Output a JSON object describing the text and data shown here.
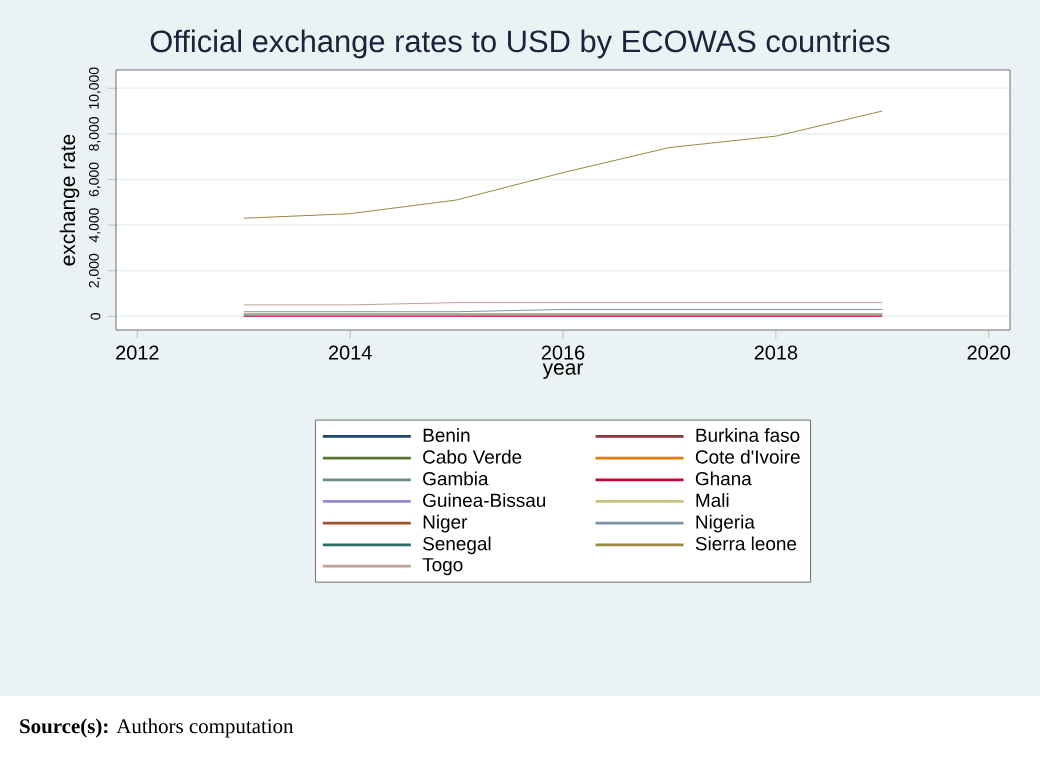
{
  "chart_data": {
    "type": "line",
    "title": "Official exchange rates to USD by ECOWAS countries",
    "xlabel": "year",
    "ylabel": "exchange rate",
    "annotations": [
      "**Source(s):** Authors computation"
    ],
    "x": [
      2013,
      2014,
      2015,
      2016,
      2017,
      2018,
      2019
    ],
    "xlim": [
      2011.8,
      2020.2
    ],
    "xticks": [
      2012,
      2014,
      2016,
      2018,
      2020
    ],
    "ylim": [
      -600,
      10800
    ],
    "yticks": [
      {
        "value": 0,
        "label": "0"
      },
      {
        "value": 2000,
        "label": "2,000"
      },
      {
        "value": 4000,
        "label": "4,000"
      },
      {
        "value": 6000,
        "label": "6,000"
      },
      {
        "value": 8000,
        "label": "8,000"
      },
      {
        "value": 10000,
        "label": "10,000"
      }
    ],
    "grid": "y",
    "legend": "bottom",
    "line_style": "solid",
    "series": [
      {
        "name": "Benin",
        "color": "#1a476f",
        "values": [
          null,
          null,
          null,
          null,
          null,
          null,
          null
        ]
      },
      {
        "name": "Burkina faso",
        "color": "#90353b",
        "values": [
          null,
          null,
          null,
          null,
          null,
          null,
          null
        ]
      },
      {
        "name": "Cabo Verde",
        "color": "#55752f",
        "values": [
          100,
          100,
          100,
          100,
          100,
          100,
          100
        ]
      },
      {
        "name": "Cote d'Ivoire",
        "color": "#e37e00",
        "values": [
          null,
          null,
          null,
          null,
          null,
          null,
          null
        ]
      },
      {
        "name": "Gambia",
        "color": "#6e8e84",
        "values": [
          50,
          50,
          50,
          50,
          50,
          50,
          50
        ]
      },
      {
        "name": "Ghana",
        "color": "#c10534",
        "values": [
          0,
          0,
          0,
          0,
          0,
          0,
          0
        ]
      },
      {
        "name": "Guinea-Bissau",
        "color": "#938dd2",
        "values": [
          null,
          null,
          null,
          null,
          null,
          null,
          null
        ]
      },
      {
        "name": "Mali",
        "color": "#cac27e",
        "values": [
          null,
          null,
          null,
          null,
          null,
          null,
          null
        ]
      },
      {
        "name": "Niger",
        "color": "#a0522d",
        "values": [
          null,
          null,
          null,
          null,
          null,
          null,
          null
        ]
      },
      {
        "name": "Nigeria",
        "color": "#7b92a8",
        "values": [
          200,
          200,
          200,
          300,
          300,
          300,
          300
        ]
      },
      {
        "name": "Senegal",
        "color": "#2d6d66",
        "values": [
          null,
          null,
          null,
          null,
          null,
          null,
          null
        ]
      },
      {
        "name": "Sierra leone",
        "color": "#9c8847",
        "values": [
          4300,
          4500,
          5100,
          6300,
          7400,
          7900,
          9000
        ]
      },
      {
        "name": "Togo",
        "color": "#bfa19c",
        "values": [
          500,
          500,
          600,
          600,
          600,
          600,
          600
        ]
      }
    ]
  }
}
